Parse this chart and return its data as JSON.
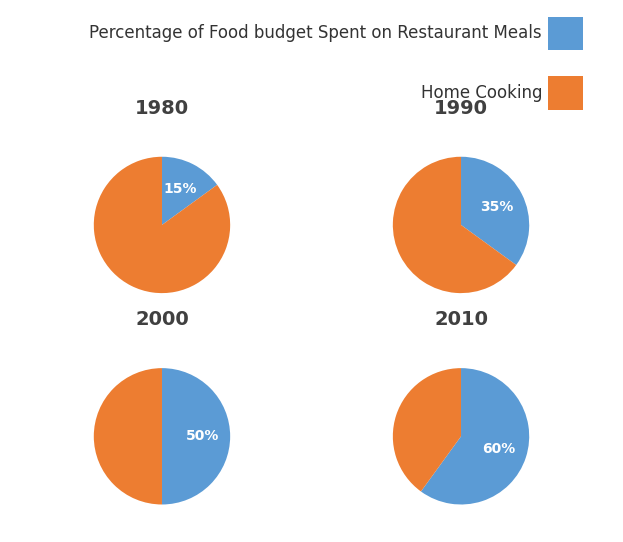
{
  "years": [
    "1980",
    "1990",
    "2000",
    "2010"
  ],
  "restaurant_pct": [
    15,
    35,
    50,
    60
  ],
  "home_cooking_pct": [
    85,
    65,
    50,
    40
  ],
  "color_restaurant": "#5B9BD5",
  "color_home": "#ED7D31",
  "legend_labels": [
    "Percentage of Food budget Spent on Restaurant Meals",
    "Home Cooking"
  ],
  "label_color": "white",
  "label_fontsize": 10,
  "title_fontsize": 14,
  "background_color": "#ffffff",
  "startangle": 90,
  "legend_fontsize": 12,
  "border_color": "#bbbbbb",
  "title_color": "#404040"
}
